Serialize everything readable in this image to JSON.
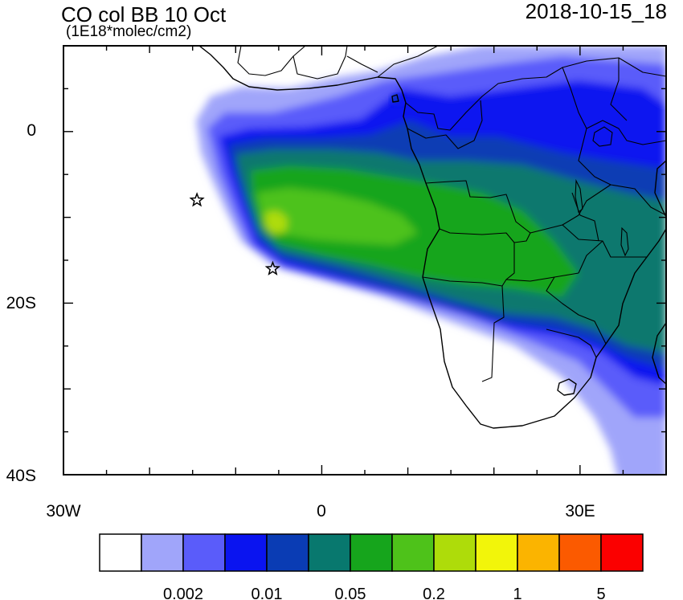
{
  "header": {
    "title": "CO col BB 10 Oct",
    "units": "(1E18*molec/cm2)",
    "datetime": "2018-10-15_18"
  },
  "axes": {
    "y_labels": [
      "0",
      "20S",
      "40S"
    ],
    "x_labels": [
      "30W",
      "0",
      "30E"
    ]
  },
  "markers": [
    {
      "name": "star-marker-1",
      "lon": -14.5,
      "lat": -8.0
    },
    {
      "name": "star-marker-2",
      "lon": -5.7,
      "lat": -16.0
    }
  ],
  "colorbar": {
    "colors": [
      "#ffffff",
      "#a0a5fa",
      "#5a5cfa",
      "#0a14f0",
      "#0a3cb4",
      "#08786e",
      "#16a51c",
      "#4ec21a",
      "#aedc0a",
      "#f2f50a",
      "#fbb400",
      "#fb5a00",
      "#fb0000"
    ],
    "labels": [
      "0.002",
      "0.01",
      "0.05",
      "0.2",
      "1",
      "5"
    ]
  }
}
